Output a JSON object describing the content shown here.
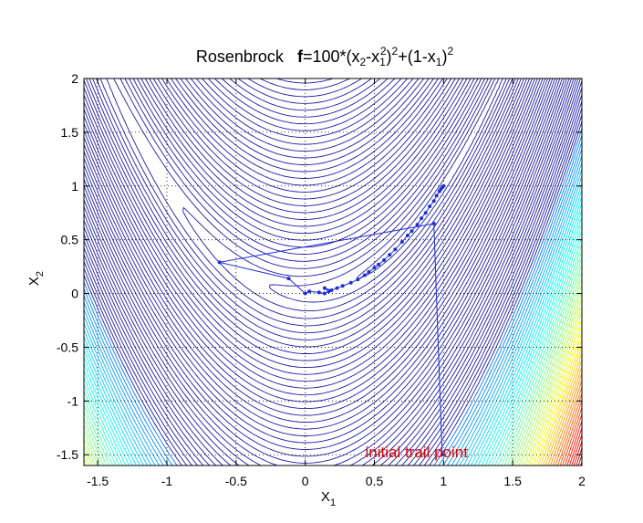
{
  "chart_data": {
    "type": "contour",
    "title": {
      "prefix": "Rosenbrock",
      "formula_bold": "f",
      "formula_rest": "=100*(x",
      "parts": [
        "2",
        "-x",
        "1",
        "2",
        ")",
        "2",
        "+(1-x",
        "1",
        ")",
        "2"
      ]
    },
    "xlabel": {
      "base": "X",
      "sub": "1"
    },
    "ylabel": {
      "base": "X",
      "sub": "2"
    },
    "xlim": [
      -1.6,
      2.0
    ],
    "ylim": [
      -1.6,
      2.0
    ],
    "xticks": [
      -1.5,
      -1,
      -0.5,
      0,
      0.5,
      1,
      1.5,
      2
    ],
    "xtick_labels": [
      "-1.5",
      "-1",
      "-0.5",
      "0",
      "0.5",
      "1",
      "1.5",
      "2"
    ],
    "yticks": [
      -1.5,
      -1,
      -0.5,
      0,
      0.5,
      1,
      1.5,
      2
    ],
    "ytick_labels": [
      "-1.5",
      "-1",
      "-0.5",
      "0",
      "0.5",
      "1",
      "1.5",
      "2"
    ],
    "grid": true,
    "grid_style": "dotted",
    "function": "100*(x2-x1^2)^2+(1-x1)^2",
    "colormap": "jet",
    "contour_line_color": "#1a1aa8",
    "path_color": "#1f2fd6",
    "annotation": {
      "text": "initial trail point",
      "x": 0.5,
      "y": -1.5,
      "color": "#dd0000"
    },
    "optimization_path": [
      [
        0.99,
        -1.5
      ],
      [
        0.93,
        0.65
      ],
      [
        -0.62,
        0.29
      ],
      [
        -0.12,
        0.14
      ],
      [
        0.0,
        0.0
      ],
      [
        0.03,
        0.02
      ],
      [
        0.1,
        0.01
      ],
      [
        0.14,
        0.0
      ],
      [
        0.17,
        0.02
      ],
      [
        0.14,
        0.05
      ],
      [
        0.19,
        0.03
      ],
      [
        0.23,
        0.05
      ],
      [
        0.27,
        0.07
      ],
      [
        0.33,
        0.1
      ],
      [
        0.38,
        0.13
      ],
      [
        0.43,
        0.17
      ],
      [
        0.46,
        0.2
      ],
      [
        0.5,
        0.24
      ],
      [
        0.53,
        0.27
      ],
      [
        0.57,
        0.31
      ],
      [
        0.61,
        0.36
      ],
      [
        0.65,
        0.41
      ],
      [
        0.7,
        0.48
      ],
      [
        0.74,
        0.54
      ],
      [
        0.77,
        0.58
      ],
      [
        0.81,
        0.64
      ],
      [
        0.84,
        0.7
      ],
      [
        0.87,
        0.75
      ],
      [
        0.9,
        0.81
      ],
      [
        0.93,
        0.86
      ],
      [
        0.95,
        0.91
      ],
      [
        0.97,
        0.95
      ],
      [
        0.98,
        0.97
      ],
      [
        0.99,
        0.99
      ],
      [
        1.0,
        1.0
      ]
    ]
  }
}
